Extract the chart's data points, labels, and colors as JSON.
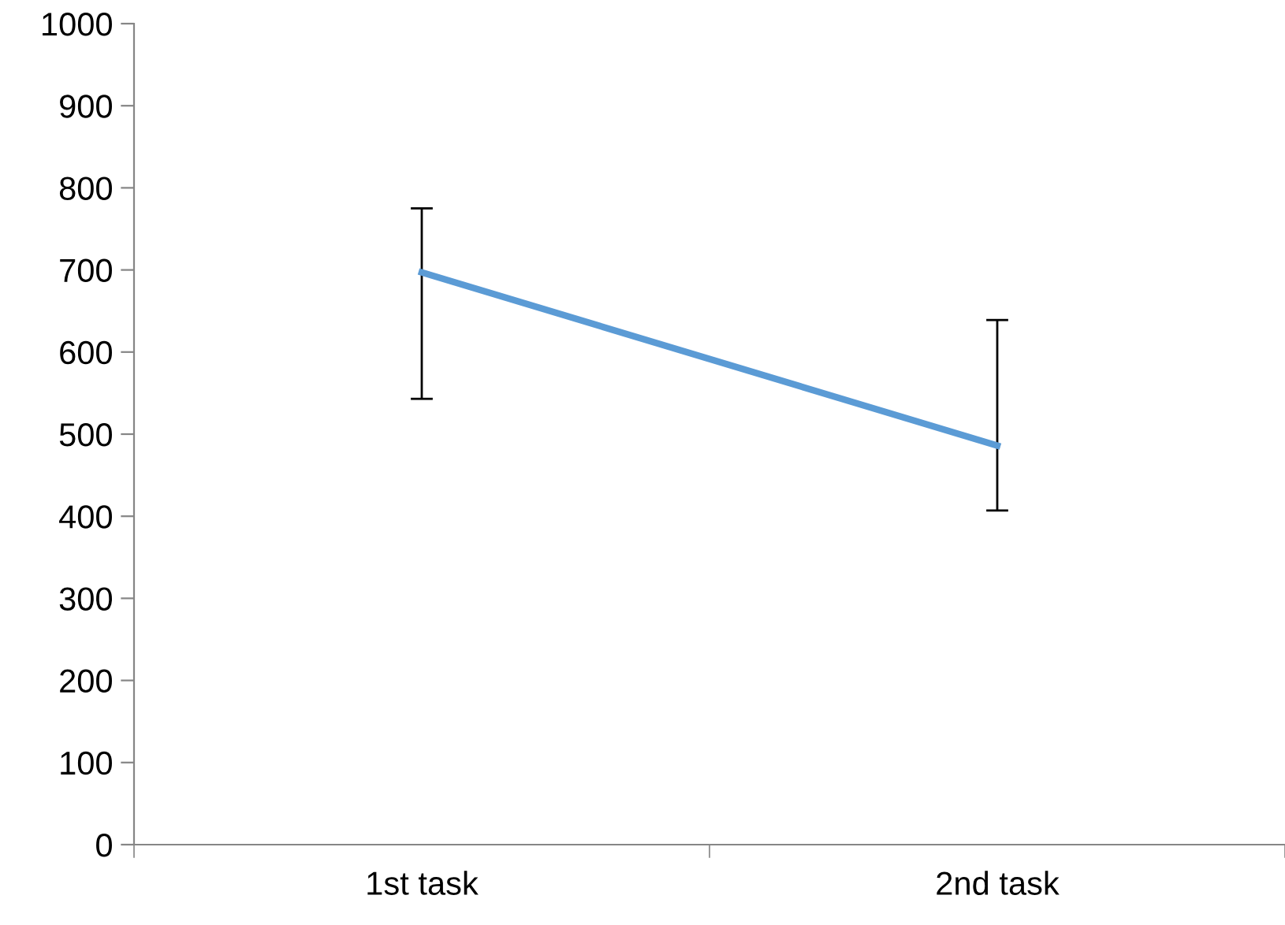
{
  "chart_data": {
    "type": "line",
    "categories": [
      "1st task",
      "2nd task"
    ],
    "series": [
      {
        "color": "#5b9bd5",
        "values": [
          697,
          486
        ],
        "errors": [
          [
            543,
            775
          ],
          [
            407,
            639
          ]
        ]
      }
    ],
    "ylim": [
      0,
      1000
    ],
    "yticks": [
      0,
      100,
      200,
      300,
      400,
      500,
      600,
      700,
      800,
      900,
      1000
    ],
    "grid": false,
    "legend": false,
    "marker": "none",
    "line_style": "solid"
  }
}
